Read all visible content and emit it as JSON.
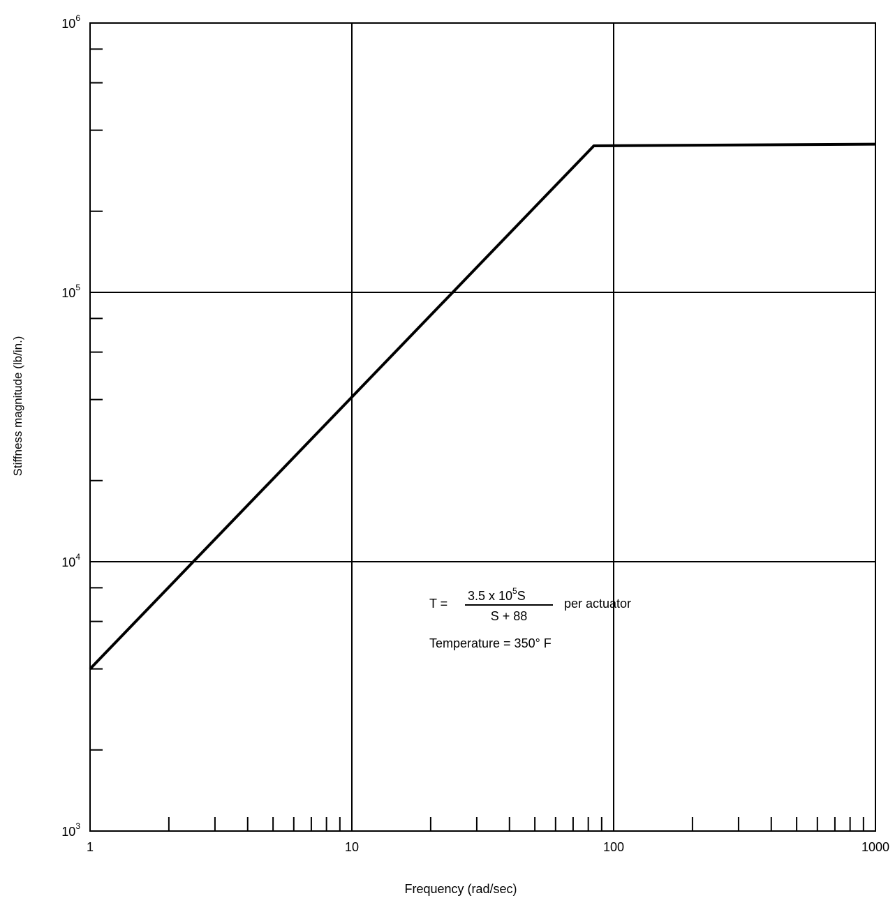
{
  "chart_data": {
    "type": "line",
    "xlabel": "Frequency (rad/sec)",
    "ylabel": "Stiffness magnitude (lb/in.)",
    "x_scale": "log",
    "y_scale": "log",
    "xlim": [
      1,
      1000
    ],
    "ylim": [
      1000,
      1000000
    ],
    "grid": true,
    "x_ticks": [
      {
        "value": 1,
        "label": "1"
      },
      {
        "value": 10,
        "label": "10"
      },
      {
        "value": 100,
        "label": "100"
      },
      {
        "value": 1000,
        "label": "1000"
      }
    ],
    "y_ticks": [
      {
        "value": 1000,
        "base": "10",
        "exp": "3"
      },
      {
        "value": 10000,
        "base": "10",
        "exp": "4"
      },
      {
        "value": 100000,
        "base": "10",
        "exp": "5"
      },
      {
        "value": 1000000,
        "base": "10",
        "exp": "6"
      }
    ],
    "series": [
      {
        "x": [
          1,
          84,
          1000
        ],
        "y": [
          4000,
          350000,
          355000
        ]
      }
    ],
    "annotations": {
      "eq_lhs": "T =",
      "eq_num_pre": "3.5 x 10",
      "eq_num_exp": "5",
      "eq_num_post": "S",
      "eq_den": "S + 88",
      "eq_suffix": "per actuator",
      "temperature": "Temperature = 350° F"
    }
  }
}
